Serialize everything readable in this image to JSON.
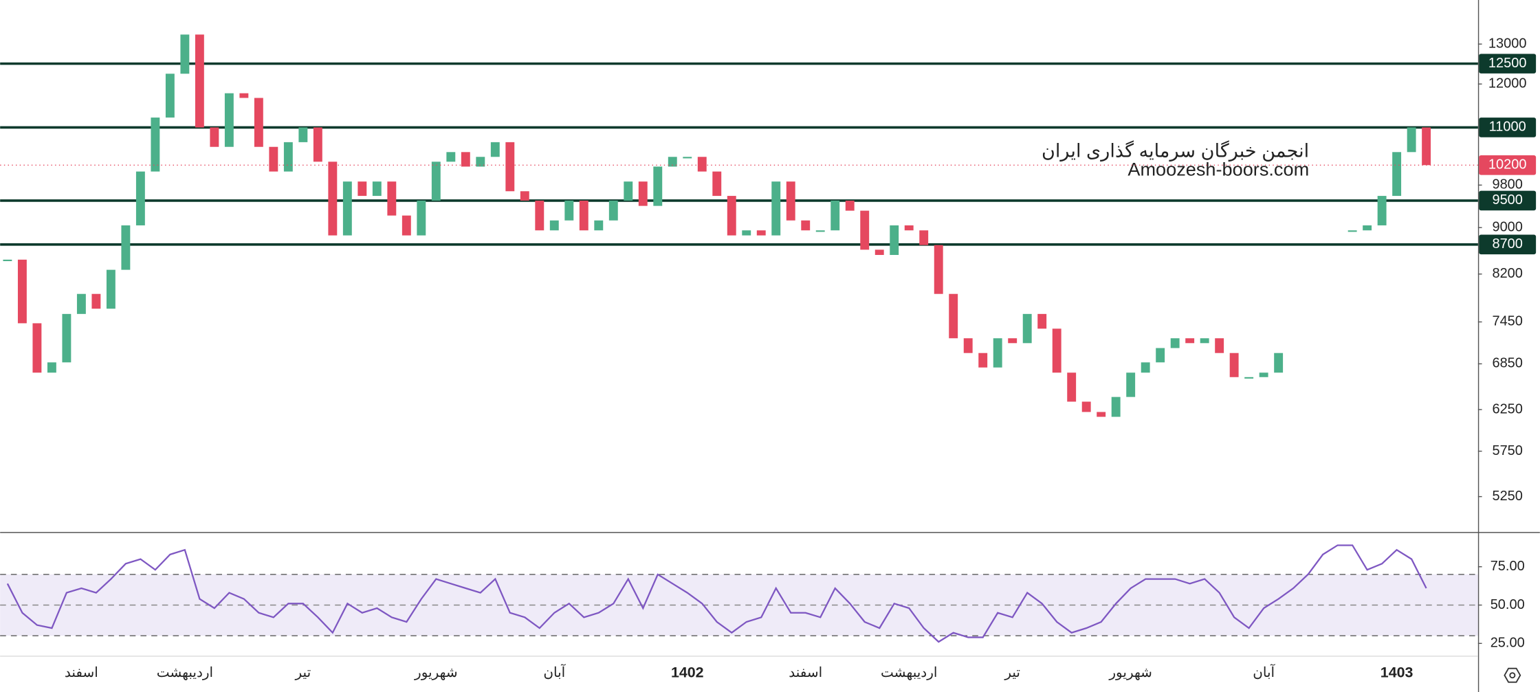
{
  "chart_data": [
    {
      "type": "candlestick",
      "annotations": [
        "انجمن خبرگان سرمایه گذاری ایران",
        "Amoozesh-boors.com"
      ],
      "categories": [
        null,
        null,
        null,
        null,
        null,
        "اسفند",
        null,
        null,
        null,
        null,
        null,
        null,
        "اردیبهشت",
        null,
        null,
        null,
        null,
        null,
        null,
        null,
        "تیر",
        null,
        null,
        null,
        null,
        null,
        null,
        null,
        null,
        "شهریور",
        null,
        null,
        null,
        null,
        null,
        null,
        null,
        "آبان",
        null,
        null,
        null,
        null,
        null,
        null,
        null,
        null,
        "1402",
        null,
        null,
        null,
        null,
        null,
        null,
        null,
        "اسفند",
        null,
        null,
        null,
        null,
        null,
        null,
        "اردیبهشت",
        null,
        null,
        null,
        null,
        null,
        null,
        "تیر",
        null,
        null,
        null,
        null,
        null,
        null,
        null,
        "شهریور",
        null,
        null,
        null,
        null,
        null,
        null,
        null,
        null,
        "آبان",
        null,
        null,
        null,
        null,
        null,
        null,
        null,
        null,
        "1403",
        null,
        null,
        null,
        null,
        null
      ],
      "values": [
        8440,
        7430,
        6730,
        6870,
        7570,
        7880,
        7650,
        8270,
        9040,
        10070,
        11220,
        12250,
        13250,
        11000,
        10580,
        11780,
        11670,
        10580,
        10070,
        10680,
        11000,
        10270,
        8860,
        9870,
        9590,
        9870,
        9220,
        8860,
        9500,
        10270,
        10470,
        10170,
        10370,
        10680,
        9680,
        9500,
        8950,
        9130,
        9500,
        8950,
        9130,
        9500,
        9870,
        9400,
        10170,
        10370,
        10370,
        10070,
        9590,
        8860,
        8950,
        8860,
        9870,
        9130,
        8950,
        8950,
        9500,
        9310,
        8610,
        8520,
        9040,
        8950,
        8690,
        7880,
        7210,
        7000,
        6800,
        7210,
        7140,
        7570,
        7350,
        6730,
        6350,
        6220,
        6160,
        6410,
        6730,
        6870,
        7070,
        7210,
        7140,
        7210,
        7000,
        6670,
        6670,
        6730,
        7000,
        null,
        null,
        null,
        null,
        8950,
        9040,
        9590,
        10470,
        11000,
        10200,
        null,
        null,
        null
      ],
      "up_color": "#4cb08a",
      "down_color": "#e5485f",
      "log_scale": true,
      "ylim": [
        4900,
        14200
      ],
      "yticks": [
        13000,
        12000,
        9800,
        9000,
        8200,
        7450,
        6850,
        6250,
        5750,
        5250
      ],
      "levels": [
        12500,
        11000,
        9500,
        8700
      ],
      "level_color": "#0d3a2c",
      "price_line_color": "#e5485f"
    },
    {
      "type": "line",
      "values": [
        64,
        45,
        37,
        35,
        58,
        61,
        58,
        67,
        77,
        80,
        73,
        83,
        86,
        54,
        48,
        58,
        54,
        45,
        42,
        51,
        51,
        42,
        32,
        51,
        45,
        48,
        42,
        39,
        54,
        67,
        64,
        61,
        58,
        67,
        45,
        42,
        35,
        45,
        51,
        42,
        45,
        51,
        67,
        48,
        70,
        64,
        58,
        51,
        39,
        32,
        39,
        42,
        61,
        45,
        45,
        42,
        61,
        51,
        39,
        35,
        51,
        48,
        35,
        26,
        32,
        29,
        29,
        45,
        42,
        58,
        51,
        39,
        32,
        35,
        39,
        51,
        61,
        67,
        67,
        67,
        64,
        67,
        58,
        42,
        35,
        48,
        54,
        61,
        70,
        83,
        89,
        89,
        73,
        77,
        86,
        80,
        61,
        null,
        null,
        null
      ],
      "color": "#7e57c2",
      "ylim": [
        17,
        97
      ],
      "yticks": [
        {
          "value": 75,
          "label": "75.00"
        },
        {
          "value": 50,
          "label": "50.00"
        },
        {
          "value": 25,
          "label": "25.00"
        }
      ],
      "bands": [
        30,
        70
      ]
    }
  ]
}
